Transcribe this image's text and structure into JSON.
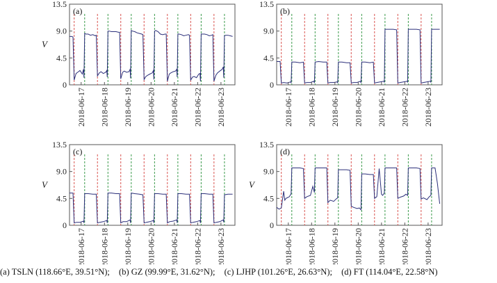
{
  "caption": [
    "(a)  TSLN  (118.66°E,  39.51°N);",
    "(b)  GZ  (99.99°E,  31.62°N);",
    "(c)  LJHP  (101.26°E,  26.63°N);",
    "(d) FT (114.04°E, 22.58°N)"
  ],
  "colors": {
    "line": "#2b2f7a",
    "red_marker": "#d9534f",
    "green_marker": "#3a9a4a",
    "axis": "#555555"
  },
  "chart_data": [
    {
      "panel": "(a)",
      "type": "line",
      "ylabel": "V",
      "ylim": [
        0,
        13.5
      ],
      "yticks": [
        0,
        4.5,
        9.0,
        13.5
      ],
      "ytick_labels": [
        "0",
        "4.5",
        "9.0",
        "13.5"
      ],
      "xlim": [
        0,
        7.1
      ],
      "x_unit": "days after 2018-06-16 12:00",
      "xtick_positions": [
        0.5,
        1.5,
        2.5,
        3.5,
        4.5,
        5.5,
        6.5
      ],
      "xtick_labels": [
        "2018-06-17",
        "2018-06-18",
        "2018-06-19",
        "2018-06-20",
        "2018-06-21",
        "2018-06-22",
        "2018-06-23"
      ],
      "red_markers": [
        0.2,
        1.2,
        2.2,
        3.2,
        4.2,
        5.2,
        6.2
      ],
      "green_markers": [
        0.65,
        1.65,
        2.65,
        3.65,
        4.65,
        5.65,
        6.65
      ],
      "x": [
        0.0,
        0.1,
        0.15,
        0.2,
        0.28,
        0.35,
        0.45,
        0.55,
        0.6,
        0.62,
        0.65,
        0.7,
        0.8,
        0.9,
        1.0,
        1.1,
        1.15,
        1.2,
        1.28,
        1.35,
        1.45,
        1.55,
        1.6,
        1.62,
        1.65,
        1.7,
        1.8,
        1.9,
        2.0,
        2.1,
        2.15,
        2.2,
        2.28,
        2.35,
        2.45,
        2.55,
        2.6,
        2.62,
        2.65,
        2.7,
        2.8,
        2.9,
        3.0,
        3.1,
        3.15,
        3.2,
        3.28,
        3.35,
        3.45,
        3.55,
        3.6,
        3.62,
        3.65,
        3.7,
        3.8,
        3.9,
        4.0,
        4.1,
        4.15,
        4.2,
        4.28,
        4.35,
        4.45,
        4.55,
        4.6,
        4.62,
        4.65,
        4.7,
        4.8,
        4.9,
        5.0,
        5.1,
        5.15,
        5.2,
        5.28,
        5.35,
        5.45,
        5.55,
        5.6,
        5.62,
        5.65,
        5.7,
        5.8,
        5.9,
        6.0,
        6.1,
        6.15,
        6.2,
        6.28,
        6.35,
        6.45,
        6.55,
        6.6,
        6.62,
        6.65,
        6.7,
        6.8,
        6.9,
        7.0
      ],
      "y": [
        8.1,
        8.1,
        8.0,
        0.8,
        1.9,
        2.1,
        2.4,
        1.8,
        2.6,
        1.2,
        8.6,
        8.5,
        8.5,
        8.3,
        8.4,
        8.2,
        8.3,
        1.5,
        2.0,
        2.2,
        1.9,
        2.1,
        2.4,
        1.3,
        9.0,
        9.0,
        8.9,
        8.9,
        8.9,
        8.8,
        8.8,
        1.0,
        2.1,
        2.3,
        2.1,
        2.2,
        2.6,
        1.1,
        9.1,
        9.0,
        8.9,
        8.7,
        8.6,
        8.5,
        8.4,
        0.9,
        1.4,
        1.6,
        1.8,
        2.0,
        2.4,
        0.9,
        9.0,
        9.1,
        8.9,
        8.5,
        8.4,
        8.5,
        8.5,
        0.6,
        1.8,
        2.0,
        2.2,
        2.3,
        2.6,
        1.3,
        8.5,
        8.5,
        8.4,
        8.2,
        8.3,
        8.4,
        8.3,
        0.8,
        1.3,
        1.4,
        1.2,
        1.8,
        1.9,
        0.6,
        8.5,
        8.5,
        8.5,
        8.4,
        8.2,
        8.3,
        8.4,
        0.6,
        1.6,
        2.0,
        2.3,
        2.6,
        3.0,
        1.2,
        8.2,
        8.3,
        8.3,
        8.2,
        8.1
      ]
    },
    {
      "panel": "(b)",
      "type": "line",
      "ylabel": "",
      "ylim": [
        0,
        13.5
      ],
      "yticks": [
        0,
        4.5,
        9.0,
        13.5
      ],
      "ytick_labels": [
        "0",
        "4.5",
        "9.0",
        "13.5"
      ],
      "xlim": [
        0,
        7.1
      ],
      "x_unit": "days after 2018-06-16 12:00",
      "xtick_positions": [
        0.5,
        1.5,
        2.5,
        3.5,
        4.5,
        5.5,
        6.5
      ],
      "xtick_labels": [
        "2018-06-17",
        "2018-06-18",
        "2018-06-19",
        "2018-06-20",
        "2018-06-21",
        "2018-06-22",
        "2018-06-23"
      ],
      "red_markers": [
        0.2,
        1.2,
        2.2,
        3.2,
        4.2,
        5.2,
        6.2
      ],
      "green_markers": [
        0.65,
        1.65,
        2.65,
        3.65,
        4.65,
        5.65,
        6.65
      ],
      "x": [
        0.0,
        0.1,
        0.15,
        0.2,
        0.3,
        0.45,
        0.6,
        0.62,
        0.65,
        0.8,
        1.0,
        1.15,
        1.2,
        1.3,
        1.45,
        1.6,
        1.62,
        1.65,
        1.8,
        2.0,
        2.15,
        2.2,
        2.3,
        2.45,
        2.6,
        2.62,
        2.65,
        2.8,
        3.0,
        3.15,
        3.2,
        3.3,
        3.45,
        3.6,
        3.62,
        3.65,
        3.8,
        4.0,
        4.15,
        4.2,
        4.3,
        4.45,
        4.6,
        4.62,
        4.65,
        4.8,
        5.0,
        5.15,
        5.2,
        5.3,
        5.45,
        5.6,
        5.62,
        5.65,
        5.8,
        6.0,
        6.15,
        6.2,
        6.3,
        6.45,
        6.6,
        6.62,
        6.65,
        6.8,
        7.0
      ],
      "y": [
        3.9,
        3.9,
        3.9,
        0.3,
        0.4,
        0.3,
        0.5,
        0.3,
        3.8,
        3.8,
        3.7,
        3.8,
        0.3,
        0.4,
        0.4,
        0.6,
        0.3,
        3.8,
        3.9,
        3.8,
        3.8,
        0.3,
        0.4,
        0.4,
        0.5,
        0.3,
        3.8,
        3.8,
        3.7,
        3.7,
        0.3,
        0.4,
        0.4,
        0.6,
        0.3,
        3.8,
        3.8,
        3.7,
        3.8,
        0.3,
        0.4,
        0.5,
        0.6,
        0.4,
        9.3,
        9.3,
        9.3,
        9.2,
        0.3,
        0.4,
        0.5,
        0.6,
        0.4,
        9.3,
        9.3,
        9.3,
        9.2,
        0.3,
        0.4,
        0.5,
        0.6,
        0.4,
        9.3,
        9.3,
        9.3
      ]
    },
    {
      "panel": "(c)",
      "type": "line",
      "ylabel": "V",
      "ylim": [
        0,
        13.5
      ],
      "yticks": [
        0,
        4.5,
        9.0,
        13.5
      ],
      "ytick_labels": [
        "0",
        "4.5",
        "9.0",
        "13.5"
      ],
      "xlim": [
        0,
        7.1
      ],
      "x_unit": "days after 2018-06-16 12:00",
      "xtick_positions": [
        0.5,
        1.5,
        2.5,
        3.5,
        4.5,
        5.5,
        6.5
      ],
      "xtick_labels": [
        "2018-06-17",
        "2018-06-18",
        "2018-06-19",
        "2018-06-20",
        "2018-06-21",
        "2018-06-22",
        "2018-06-23"
      ],
      "red_markers": [
        0.2,
        1.2,
        2.2,
        3.2,
        4.2,
        5.2,
        6.2
      ],
      "green_markers": [
        0.65,
        1.65,
        2.65,
        3.65,
        4.65,
        5.65,
        6.65
      ],
      "x": [
        0.0,
        0.1,
        0.15,
        0.2,
        0.3,
        0.45,
        0.6,
        0.62,
        0.65,
        0.8,
        1.0,
        1.15,
        1.2,
        1.3,
        1.45,
        1.6,
        1.62,
        1.65,
        1.8,
        2.0,
        2.15,
        2.2,
        2.3,
        2.45,
        2.6,
        2.62,
        2.65,
        2.8,
        3.0,
        3.15,
        3.2,
        3.3,
        3.45,
        3.6,
        3.62,
        3.65,
        3.8,
        4.0,
        4.15,
        4.2,
        4.3,
        4.45,
        4.6,
        4.62,
        4.65,
        4.8,
        5.0,
        5.15,
        5.2,
        5.3,
        5.45,
        5.6,
        5.62,
        5.65,
        5.8,
        6.0,
        6.15,
        6.2,
        6.3,
        6.45,
        6.6,
        6.62,
        6.65,
        6.8,
        7.0
      ],
      "y": [
        5.4,
        5.4,
        5.4,
        0.4,
        0.5,
        0.5,
        0.7,
        0.4,
        5.3,
        5.3,
        5.2,
        5.2,
        0.4,
        0.5,
        0.6,
        0.8,
        0.4,
        5.4,
        5.4,
        5.3,
        5.3,
        0.4,
        0.6,
        0.6,
        0.9,
        0.4,
        5.4,
        5.3,
        5.2,
        5.1,
        0.4,
        0.5,
        0.6,
        0.8,
        0.4,
        5.3,
        5.3,
        5.2,
        5.2,
        0.4,
        0.6,
        0.7,
        0.9,
        0.4,
        5.3,
        5.3,
        5.2,
        5.2,
        0.4,
        0.5,
        0.6,
        0.8,
        0.4,
        5.3,
        5.3,
        5.2,
        5.2,
        0.4,
        0.5,
        0.6,
        0.9,
        0.5,
        5.1,
        5.2,
        5.2
      ]
    },
    {
      "panel": "(d)",
      "type": "line",
      "ylabel": "V",
      "ylim": [
        0,
        13.5
      ],
      "yticks": [
        0,
        4.5,
        9.0,
        13.5
      ],
      "ytick_labels": [
        "0",
        "4.5",
        "9.0",
        "13.5"
      ],
      "xlim": [
        0,
        7.1
      ],
      "x_unit": "days after 2018-06-16 12:00",
      "xtick_positions": [
        0.5,
        1.5,
        2.5,
        3.5,
        4.5,
        5.5,
        6.5
      ],
      "xtick_labels": [
        "2018-06-17",
        "2018-06-18",
        "2018-06-19",
        "2018-06-20",
        "2018-06-21",
        "2018-06-22",
        "2018-06-23"
      ],
      "red_markers": [
        0.2,
        1.2,
        2.2,
        3.2,
        4.2,
        5.2,
        6.2
      ],
      "green_markers": [
        0.65,
        1.65,
        2.65,
        3.65,
        4.65,
        5.65,
        6.65
      ],
      "x": [
        0.0,
        0.1,
        0.2,
        0.3,
        0.35,
        0.4,
        0.45,
        0.55,
        0.62,
        0.65,
        0.8,
        1.0,
        1.15,
        1.2,
        1.3,
        1.45,
        1.55,
        1.62,
        1.65,
        1.8,
        2.0,
        2.15,
        2.2,
        2.3,
        2.45,
        2.55,
        2.62,
        2.65,
        2.8,
        3.0,
        3.15,
        3.2,
        3.3,
        3.45,
        3.55,
        3.62,
        3.65,
        3.8,
        4.0,
        4.15,
        4.2,
        4.3,
        4.4,
        4.5,
        4.55,
        4.62,
        4.65,
        4.8,
        5.0,
        5.15,
        5.2,
        5.3,
        5.45,
        5.55,
        5.62,
        5.65,
        5.8,
        6.0,
        6.15,
        6.2,
        6.3,
        6.45,
        6.55,
        6.62,
        6.65,
        6.8,
        6.9,
        7.0
      ],
      "y": [
        3.0,
        2.7,
        2.9,
        5.7,
        4.2,
        4.5,
        4.6,
        4.8,
        5.3,
        9.6,
        9.6,
        9.6,
        9.5,
        4.5,
        4.8,
        5.0,
        6.5,
        5.5,
        9.6,
        9.6,
        9.6,
        9.6,
        3.8,
        4.2,
        4.0,
        4.4,
        4.6,
        9.3,
        9.3,
        9.3,
        9.2,
        3.2,
        3.0,
        2.8,
        2.9,
        2.6,
        8.6,
        8.6,
        8.5,
        8.5,
        4.5,
        4.8,
        9.5,
        5.2,
        5.0,
        5.4,
        9.6,
        9.6,
        9.6,
        9.6,
        4.5,
        4.7,
        4.9,
        5.2,
        5.0,
        9.6,
        9.6,
        9.6,
        9.5,
        4.4,
        4.6,
        4.3,
        4.8,
        5.0,
        9.6,
        9.6,
        7.0,
        3.6
      ]
    }
  ]
}
